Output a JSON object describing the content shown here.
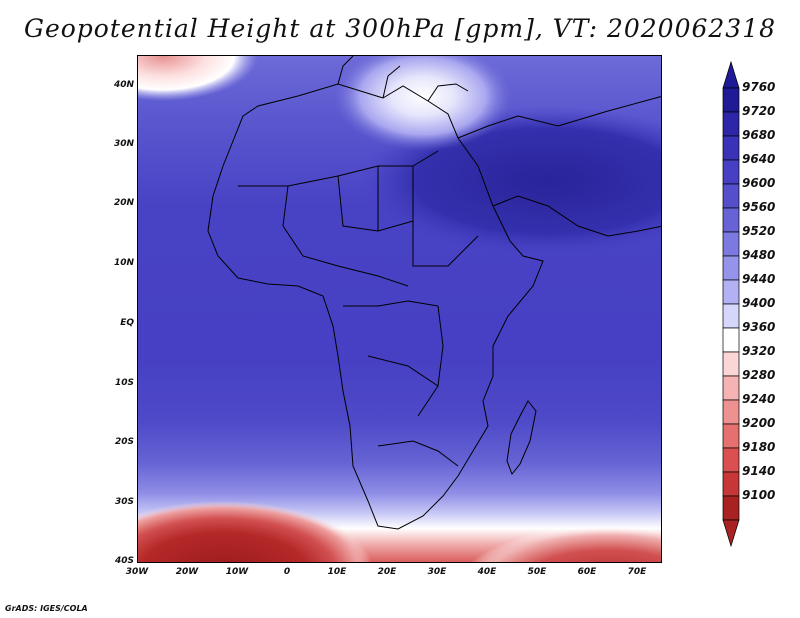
{
  "title": "Geopotential Height at 300hPa [gpm], VT: 2020062318",
  "credit": "GrADS: IGES/COLA",
  "map": {
    "lon_range": [
      -30,
      75
    ],
    "lat_range": [
      -40,
      45
    ],
    "lat_labels": [
      "40N",
      "30N",
      "20N",
      "10N",
      "EQ",
      "10S",
      "20S",
      "30S",
      "40S"
    ],
    "lon_labels": [
      "30W",
      "20W",
      "10W",
      "0",
      "10E",
      "20E",
      "30E",
      "40E",
      "50E",
      "60E",
      "70E"
    ]
  },
  "colorbar": {
    "levels": [
      "9760",
      "9720",
      "9680",
      "9640",
      "9600",
      "9560",
      "9520",
      "9480",
      "9440",
      "9400",
      "9360",
      "9320",
      "9280",
      "9240",
      "9200",
      "9180",
      "9140",
      "9100"
    ],
    "colors": [
      "#1f1a96",
      "#2d26a8",
      "#3a33b8",
      "#4740c4",
      "#554fcc",
      "#6763d6",
      "#7c79e0",
      "#9593ea",
      "#b2b1f3",
      "#d6d6fb",
      "#ffffff",
      "#fbd6d6",
      "#f5b3b3",
      "#ee9191",
      "#e57070",
      "#da5050",
      "#c83737",
      "#a82222"
    ]
  }
}
